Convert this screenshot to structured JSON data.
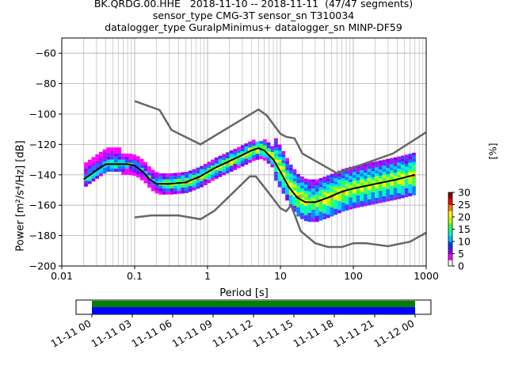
{
  "title": {
    "line1": "BK.QRDG.00.HHE   2018-11-10 -- 2018-11-11  (47/47 segments)",
    "line2": "sensor_type CMG-3T sensor_sn T310034",
    "line3": "datalogger_type GuralpMinimus+ datalogger_sn MINP-DF59"
  },
  "colorbar": {
    "label": "[%]",
    "ticks": [
      "30",
      "25",
      "20",
      "15",
      "10",
      "5",
      "0"
    ]
  },
  "timeline": {
    "ticks": [
      "11-11 00",
      "11-11 03",
      "11-11 06",
      "11-11 09",
      "11-11 12",
      "11-11 15",
      "11-11 18",
      "11-11 21",
      "11-12 00"
    ],
    "colors": {
      "top": "#008000",
      "bottom": "#0000ff"
    }
  },
  "chart_data": {
    "type": "heatmap",
    "xlabel": "Period [s]",
    "ylabel": "Power [m²/s⁴/Hz] [dB]",
    "xscale": "log",
    "xlim": [
      0.01,
      1000
    ],
    "ylim": [
      -200,
      -50
    ],
    "xticks": [
      "0.01",
      "0.1",
      "1",
      "10",
      "100",
      "1000"
    ],
    "yticks": [
      "-60",
      "-80",
      "-100",
      "-120",
      "-140",
      "-160",
      "-180",
      "-200"
    ],
    "grid": true,
    "noise_models": {
      "color": "#666666",
      "nhnm": [
        [
          0.1,
          -91.5
        ],
        [
          0.22,
          -97.4
        ],
        [
          0.32,
          -110.5
        ],
        [
          0.8,
          -120
        ],
        [
          5,
          -97
        ],
        [
          6.5,
          -101
        ],
        [
          10,
          -113
        ],
        [
          12,
          -115
        ],
        [
          15.6,
          -116
        ],
        [
          20,
          -126
        ],
        [
          60,
          -139
        ],
        [
          350,
          -126
        ],
        [
          1000,
          -112
        ]
      ],
      "nlnm": [
        [
          0.1,
          -168
        ],
        [
          0.17,
          -166.7
        ],
        [
          0.4,
          -166.7
        ],
        [
          0.8,
          -169.2
        ],
        [
          1.24,
          -163.7
        ],
        [
          3.8,
          -141.1
        ],
        [
          4.6,
          -141.1
        ],
        [
          6.3,
          -149.4
        ],
        [
          10,
          -162
        ],
        [
          12,
          -164
        ],
        [
          14,
          -160
        ],
        [
          19,
          -177
        ],
        [
          30,
          -185
        ],
        [
          45,
          -187.5
        ],
        [
          70,
          -187.5
        ],
        [
          100,
          -185
        ],
        [
          150,
          -185
        ],
        [
          300,
          -187
        ],
        [
          600,
          -184
        ],
        [
          1000,
          -178
        ]
      ]
    },
    "mode_curve": {
      "color": "#000000",
      "points": [
        [
          0.02,
          -143
        ],
        [
          0.03,
          -137
        ],
        [
          0.04,
          -133
        ],
        [
          0.06,
          -133
        ],
        [
          0.08,
          -133
        ],
        [
          0.1,
          -134
        ],
        [
          0.13,
          -138
        ],
        [
          0.16,
          -143
        ],
        [
          0.2,
          -146
        ],
        [
          0.3,
          -146
        ],
        [
          0.5,
          -145
        ],
        [
          0.8,
          -141
        ],
        [
          1.2,
          -136
        ],
        [
          2,
          -131
        ],
        [
          3,
          -127
        ],
        [
          4,
          -124
        ],
        [
          5,
          -122.5
        ],
        [
          6,
          -124
        ],
        [
          8,
          -130
        ],
        [
          10,
          -138
        ],
        [
          13,
          -148
        ],
        [
          17,
          -155
        ],
        [
          22,
          -158
        ],
        [
          30,
          -158
        ],
        [
          45,
          -155
        ],
        [
          70,
          -151
        ],
        [
          100,
          -149
        ],
        [
          200,
          -146
        ],
        [
          400,
          -143
        ],
        [
          700,
          -140
        ]
      ]
    },
    "psd_density": {
      "description_of_encoding": "",
      "colormap_ticks": [
        0,
        5,
        10,
        15,
        20,
        25,
        30
      ]
    }
  }
}
